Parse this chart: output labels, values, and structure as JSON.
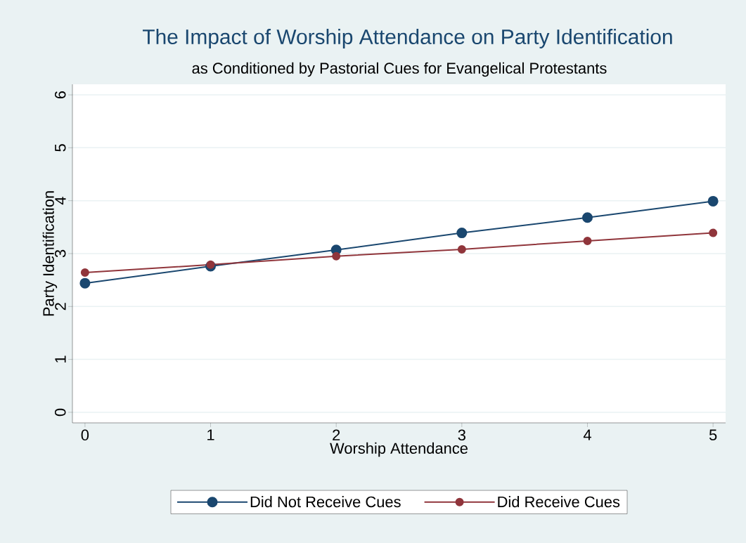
{
  "chart_data": {
    "type": "line",
    "title": "The Impact of Worship Attendance on Party Identification",
    "subtitle": "as Conditioned by Pastorial Cues for Evangelical Protestants",
    "xlabel": "Worship Attendance",
    "ylabel": "Party Identification",
    "x": [
      0,
      1,
      2,
      3,
      4,
      5
    ],
    "series": [
      {
        "name": "Did Not Receive Cues",
        "color": "#1a476f",
        "values": [
          2.44,
          2.76,
          3.07,
          3.39,
          3.68,
          3.99
        ]
      },
      {
        "name": "Did Receive Cues",
        "color": "#90353b",
        "values": [
          2.64,
          2.79,
          2.95,
          3.08,
          3.24,
          3.39
        ]
      }
    ],
    "xlim": [
      -0.1,
      5.1
    ],
    "ylim": [
      -0.2,
      6.2
    ],
    "xticks": [
      0,
      1,
      2,
      3,
      4,
      5
    ],
    "yticks": [
      0,
      1,
      2,
      3,
      4,
      5,
      6
    ],
    "grid": "y",
    "legend": "bottom",
    "marker": "circle",
    "line_style": "solid"
  }
}
